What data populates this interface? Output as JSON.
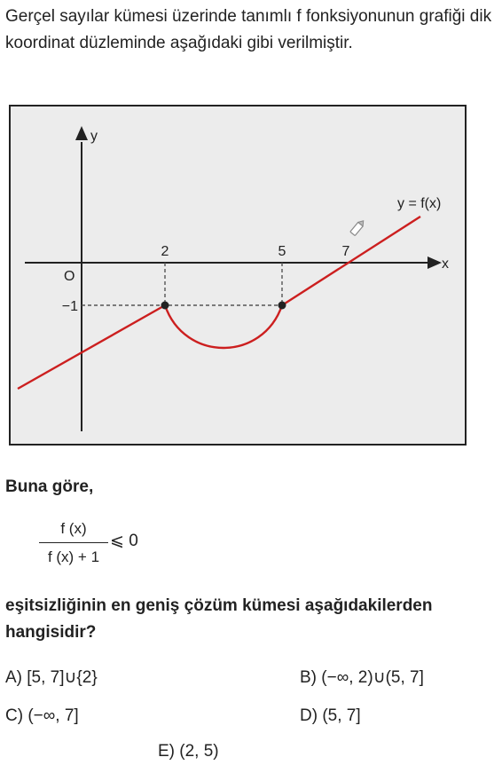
{
  "problem": {
    "intro": "Gerçel sayılar kümesi üzerinde tanımlı f fonksiyonunun grafiği dik koordinat düzleminde aşağıdaki gibi verilmiştir.",
    "lead": "Buna göre,",
    "fraction": {
      "numerator": "f (x)",
      "denominator": "f (x) + 1",
      "relation": "⩽ 0"
    },
    "question": "eşitsizliğinin en geniş çözüm kümesi aşağıdakilerden hangisidir?",
    "choices": [
      {
        "letter": "A)",
        "text": "[5, 7]∪{2}"
      },
      {
        "letter": "B)",
        "text": "(−∞, 2)∪(5, 7]"
      },
      {
        "letter": "C)",
        "text": "(−∞, 7]"
      },
      {
        "letter": "D)",
        "text": "(5, 7]"
      },
      {
        "letter": "E)",
        "text": "(2, 5)"
      }
    ]
  },
  "graph": {
    "y_axis_label": "y",
    "x_axis_label": "x",
    "origin_label": "O",
    "x_ticks": [
      "2",
      "5",
      "7"
    ],
    "y_ticks": [
      "−1"
    ],
    "curve_label": "y = f(x)",
    "curve_color": "#cc1f1f",
    "points": [
      {
        "x": 2,
        "y": -1
      },
      {
        "x": 5,
        "y": -1
      }
    ]
  }
}
